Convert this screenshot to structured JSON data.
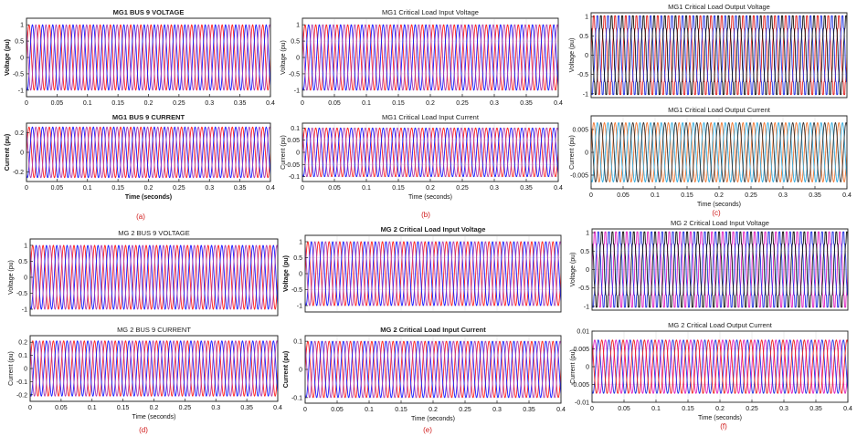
{
  "figure": {
    "captions": [
      "(a)",
      "(b)",
      "(c)",
      "(d)",
      "(e)",
      "(f)"
    ]
  },
  "chart_data": [
    {
      "type": "line",
      "title": "MG1 BUS 9 VOLTAGE",
      "title_bold": true,
      "ylabel": "Voltage (pu)",
      "xlabel": "",
      "xlim": [
        0,
        0.4
      ],
      "ylim": [
        -1.2,
        1.2
      ],
      "xticks": [
        0,
        0.05,
        0.1,
        0.15,
        0.2,
        0.25,
        0.3,
        0.35,
        0.4
      ],
      "yticks": [
        -1,
        -0.5,
        0,
        0.5,
        1
      ],
      "grid": false,
      "waveform": {
        "frequency_hz": 60,
        "amplitude": 1.0,
        "phases": 3,
        "colors": [
          "#ff2020",
          "#1a1aff",
          "#b040b0"
        ],
        "distortion": 0
      }
    },
    {
      "type": "line",
      "title": "MG1 BUS 9 CURRENT",
      "title_bold": true,
      "ylabel": "Current (pu)",
      "xlabel": "Time (seconds)",
      "xlabel_bold": true,
      "xlim": [
        0,
        0.4
      ],
      "ylim": [
        -0.3,
        0.3
      ],
      "xticks": [
        0,
        0.05,
        0.1,
        0.15,
        0.2,
        0.25,
        0.3,
        0.35,
        0.4
      ],
      "yticks": [
        -0.2,
        0,
        0.2
      ],
      "grid": false,
      "waveform": {
        "frequency_hz": 60,
        "amplitude": 0.26,
        "phases": 3,
        "colors": [
          "#ff2020",
          "#1a1aff",
          "#b040b0"
        ],
        "distortion": 0
      }
    },
    {
      "type": "line",
      "title": "MG1 Critical Load Input Voltage",
      "title_bold": false,
      "ylabel": "Voltage (pu)",
      "xlabel": "",
      "xlim": [
        0,
        0.4
      ],
      "ylim": [
        -1.2,
        1.2
      ],
      "xticks": [
        0,
        0.05,
        0.1,
        0.15,
        0.2,
        0.25,
        0.3,
        0.35,
        0.4
      ],
      "yticks": [
        -1,
        -0.5,
        0,
        0.5,
        1
      ],
      "grid": true,
      "waveform": {
        "frequency_hz": 60,
        "amplitude": 1.0,
        "phases": 3,
        "colors": [
          "#ff2020",
          "#1a1aff",
          "#b040b0"
        ],
        "distortion": 0
      }
    },
    {
      "type": "line",
      "title": "MG1 Critical Load Input Current",
      "title_bold": false,
      "ylabel": "Current (pu)",
      "xlabel": "Time (seconds)",
      "xlim": [
        0,
        0.4
      ],
      "ylim": [
        -0.12,
        0.12
      ],
      "xticks": [
        0,
        0.05,
        0.1,
        0.15,
        0.2,
        0.25,
        0.3,
        0.35,
        0.4
      ],
      "yticks": [
        -0.1,
        -0.05,
        0,
        0.05,
        0.1
      ],
      "grid": true,
      "waveform": {
        "frequency_hz": 60,
        "amplitude": 0.1,
        "phases": 3,
        "colors": [
          "#ff2020",
          "#1a1aff",
          "#b040b0"
        ],
        "distortion": 0
      }
    },
    {
      "type": "line",
      "title": "MG1 Critical  Load  Output  Voltage",
      "title_bold": false,
      "ylabel": "Voltage (pu)",
      "xlabel": "",
      "xlim": [
        0,
        0.4
      ],
      "ylim": [
        -1.1,
        1.1
      ],
      "xticks": [],
      "yticks": [
        -1,
        -0.5,
        0,
        0.5,
        1
      ],
      "grid": true,
      "waveform": {
        "frequency_hz": 60,
        "amplitude": 1.0,
        "phases": 3,
        "colors": [
          "#e02020",
          "#2030e0",
          "#111111"
        ],
        "distortion": 0.12
      }
    },
    {
      "type": "line",
      "title": "MG1 Critical Load Output  Current",
      "title_bold": false,
      "ylabel": "Current (pu)",
      "xlabel": "Time (seconds)",
      "xlim": [
        0,
        0.4
      ],
      "ylim": [
        -0.008,
        0.008
      ],
      "xticks": [
        0,
        0.05,
        0.1,
        0.15,
        0.2,
        0.25,
        0.3,
        0.35,
        0.4
      ],
      "yticks": [
        -0.005,
        0,
        0.005
      ],
      "grid": true,
      "waveform": {
        "frequency_hz": 60,
        "amplitude": 0.0065,
        "phases": 3,
        "colors": [
          "#ee7733",
          "#33aadd",
          "#333333"
        ],
        "distortion": 0
      }
    },
    {
      "type": "line",
      "title": "MG 2 BUS 9 VOLTAGE",
      "title_bold": false,
      "ylabel": "Voltage (pu)",
      "xlabel": "",
      "xlim": [
        0,
        0.4
      ],
      "ylim": [
        -1.2,
        1.2
      ],
      "xticks": [],
      "yticks": [
        -1,
        -0.5,
        0,
        0.5,
        1
      ],
      "grid": false,
      "waveform": {
        "frequency_hz": 60,
        "amplitude": 1.0,
        "phases": 3,
        "colors": [
          "#ff2020",
          "#1a1aff",
          "#b040b0"
        ],
        "distortion": 0
      }
    },
    {
      "type": "line",
      "title": "MG 2 BUS 9 CURRENT",
      "title_bold": false,
      "ylabel": "Current (pu)",
      "xlabel": "Time (seconds)",
      "xlim": [
        0,
        0.4
      ],
      "ylim": [
        -0.25,
        0.25
      ],
      "xticks": [
        0,
        0.05,
        0.1,
        0.15,
        0.2,
        0.25,
        0.3,
        0.35,
        0.4
      ],
      "yticks": [
        -0.2,
        -0.1,
        0,
        0.1,
        0.2
      ],
      "grid": false,
      "waveform": {
        "frequency_hz": 60,
        "amplitude": 0.21,
        "phases": 3,
        "colors": [
          "#ff2020",
          "#1a1aff",
          "#b040b0"
        ],
        "distortion": 0
      }
    },
    {
      "type": "line",
      "title": "MG 2 Critical Load Input Voltage",
      "title_bold": true,
      "ylabel": "Voltage (pu)",
      "xlabel": "",
      "xlim": [
        0,
        0.4
      ],
      "ylim": [
        -1.2,
        1.2
      ],
      "xticks": [],
      "yticks": [
        -1,
        -0.5,
        0,
        0.5,
        1
      ],
      "grid": true,
      "waveform": {
        "frequency_hz": 60,
        "amplitude": 1.0,
        "phases": 3,
        "colors": [
          "#ff2020",
          "#1a1aff",
          "#b040b0"
        ],
        "distortion": 0
      }
    },
    {
      "type": "line",
      "title": "MG 2 Critical Load Input Current",
      "title_bold": true,
      "ylabel": "Current (pu)",
      "xlabel": "Time (seconds)",
      "xlim": [
        0,
        0.4
      ],
      "ylim": [
        -0.12,
        0.12
      ],
      "xticks": [
        0,
        0.05,
        0.1,
        0.15,
        0.2,
        0.25,
        0.3,
        0.35,
        0.4
      ],
      "yticks": [
        -0.1,
        0,
        0.1
      ],
      "grid": true,
      "waveform": {
        "frequency_hz": 60,
        "amplitude": 0.1,
        "phases": 3,
        "colors": [
          "#ff2020",
          "#1a1aff",
          "#b040b0"
        ],
        "distortion": 0
      }
    },
    {
      "type": "line",
      "title": "MG 2 Critical Load Input  Voltage",
      "title_bold": false,
      "ylabel": "Voltage (pu)",
      "xlabel": "",
      "xlim": [
        0,
        0.4
      ],
      "ylim": [
        -1.1,
        1.1
      ],
      "xticks": [],
      "yticks": [
        -1,
        -0.5,
        0,
        0.5,
        1
      ],
      "grid": true,
      "waveform": {
        "frequency_hz": 60,
        "amplitude": 1.0,
        "phases": 3,
        "colors": [
          "#e020c0",
          "#2030e0",
          "#111111"
        ],
        "distortion": 0.12
      }
    },
    {
      "type": "line",
      "title": "MG 2 Critical Load Output Current",
      "title_bold": false,
      "ylabel": "Current (pu)",
      "xlabel": "Time (seconds)",
      "xlim": [
        0,
        0.4
      ],
      "ylim": [
        -0.01,
        0.01
      ],
      "xticks": [
        0,
        0.05,
        0.1,
        0.15,
        0.2,
        0.25,
        0.3,
        0.35,
        0.4
      ],
      "yticks": [
        -0.01,
        -0.005,
        0,
        0.005,
        0.01
      ],
      "grid": true,
      "waveform": {
        "frequency_hz": 60,
        "amplitude": 0.0075,
        "phases": 3,
        "colors": [
          "#e020c0",
          "#2030e0",
          "#ee2020"
        ],
        "distortion": 0
      }
    }
  ]
}
